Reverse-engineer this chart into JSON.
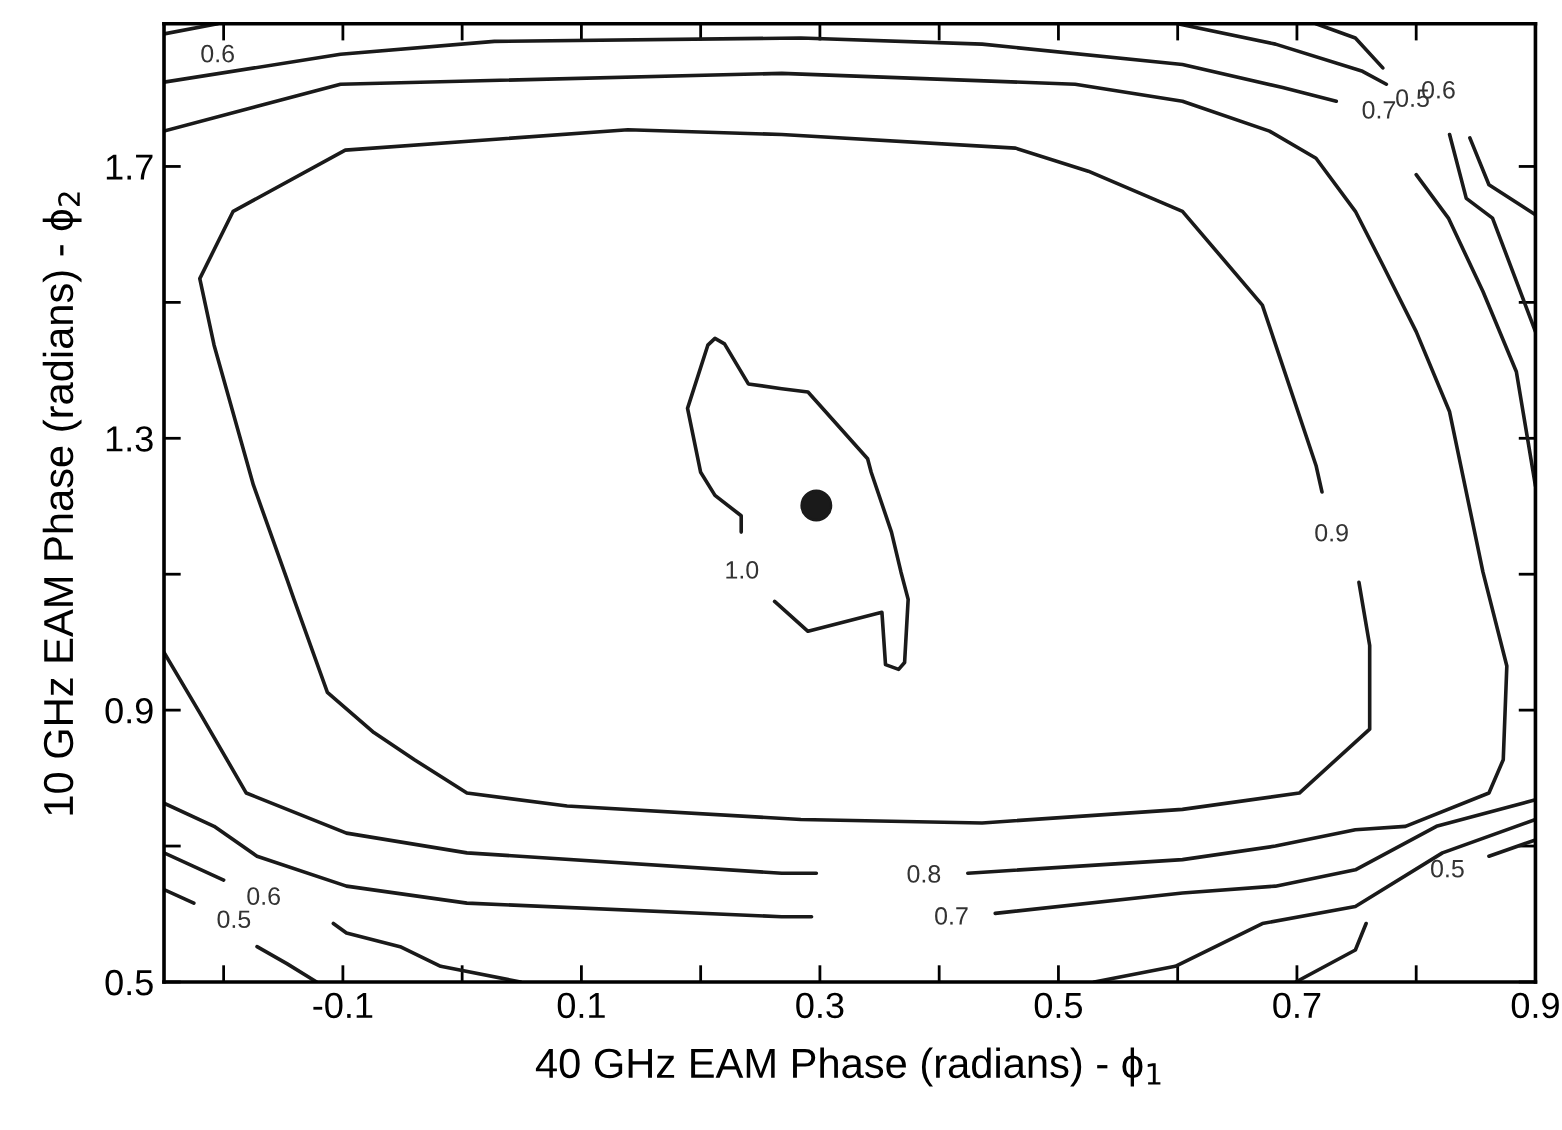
{
  "chart_data": {
    "type": "line",
    "xlabel": "40 GHz EAM Phase (radians) - ϕ$_{1}$",
    "ylabel": "10 GHz EAM Phase (radians) - ϕ$_{2}$",
    "xlim": [
      -0.25,
      0.9
    ],
    "ylim": [
      0.5,
      1.91
    ],
    "xticks": [
      {
        "value": -0.2,
        "label": null
      },
      -0.1,
      {
        "value": 0.0,
        "label": null
      },
      0.1,
      {
        "value": 0.2,
        "label": null
      },
      0.3,
      {
        "value": 0.4,
        "label": null
      },
      0.5,
      {
        "value": 0.6,
        "label": null
      },
      0.7,
      {
        "value": 0.8,
        "label": null
      },
      0.9
    ],
    "yticks": [
      0.5,
      {
        "value": 0.7,
        "label": null
      },
      0.9,
      {
        "value": 1.1,
        "label": null
      },
      1.3,
      {
        "value": 1.5,
        "label": null
      },
      1.7
    ],
    "grid": false,
    "legend": false,
    "marker": "none",
    "line_style": "solid",
    "series": [
      {
        "name": "0.6",
        "color": "#1a1a1a",
        "x": [
          -0.25,
          -0.205
        ],
        "values": [
          1.895,
          1.91
        ]
      },
      {
        "name": "0.7",
        "color": "#1a1a1a",
        "x": [
          -0.25,
          -0.102,
          0.027,
          0.284,
          0.436,
          0.604,
          0.688,
          0.733
        ],
        "values": [
          1.824,
          1.865,
          1.884,
          1.889,
          1.88,
          1.85,
          1.816,
          1.796
        ]
      },
      {
        "color": "#1a1a1a",
        "x": [
          0.8,
          0.827,
          0.856,
          0.884,
          0.9
        ],
        "values": [
          1.688,
          1.624,
          1.516,
          1.398,
          1.23
        ]
      },
      {
        "name": "0.7",
        "color": "#1a1a1a",
        "x": [
          0.9,
          0.817,
          0.749,
          0.682,
          0.604,
          0.447
        ],
        "values": [
          0.768,
          0.729,
          0.665,
          0.641,
          0.631,
          0.601
        ]
      },
      {
        "color": "#1a1a1a",
        "x": [
          0.293,
          0.268,
          0.004,
          -0.097,
          -0.172,
          -0.208,
          -0.25
        ],
        "values": [
          0.596,
          0.596,
          0.616,
          0.641,
          0.685,
          0.729,
          0.763
        ]
      },
      {
        "name": "0.8",
        "color": "#1a1a1a",
        "x": [
          -0.25,
          -0.102,
          0.268,
          0.514,
          0.604,
          0.677,
          0.716,
          0.749,
          0.772,
          0.8,
          0.828,
          0.856,
          0.876,
          0.873,
          0.861,
          0.791,
          0.749,
          0.682,
          0.604,
          0.424
        ],
        "values": [
          1.752,
          1.821,
          1.837,
          1.821,
          1.796,
          1.752,
          1.712,
          1.634,
          1.555,
          1.457,
          1.339,
          1.103,
          0.965,
          0.827,
          0.778,
          0.729,
          0.724,
          0.7,
          0.68,
          0.66
        ]
      },
      {
        "color": "#1a1a1a",
        "x": [
          0.297,
          0.268,
          0.004,
          -0.097,
          -0.181,
          -0.22,
          -0.25
        ],
        "values": [
          0.66,
          0.66,
          0.69,
          0.719,
          0.778,
          0.896,
          0.985
        ]
      },
      {
        "name": "0.9",
        "color": "#1a1a1a",
        "x": [
          0.752,
          0.761,
          0.761,
          0.702,
          0.604,
          0.436,
          0.284,
          0.088,
          0.004,
          -0.04,
          -0.074,
          -0.113,
          -0.141,
          -0.147,
          -0.175,
          -0.208,
          -0.22,
          -0.192,
          -0.098,
          0.139,
          0.268,
          0.464,
          0.525,
          0.604,
          0.671,
          0.716,
          0.721
        ],
        "values": [
          1.088,
          0.995,
          0.872,
          0.778,
          0.754,
          0.734,
          0.739,
          0.759,
          0.778,
          0.827,
          0.867,
          0.926,
          1.063,
          1.093,
          1.231,
          1.437,
          1.535,
          1.634,
          1.724,
          1.754,
          1.747,
          1.727,
          1.693,
          1.634,
          1.496,
          1.26,
          1.221
        ]
      },
      {
        "name": "1.0",
        "color": "#1a1a1a",
        "x": [
          0.234,
          0.234,
          0.212,
          0.2,
          0.189,
          0.206,
          0.212,
          0.22,
          0.24,
          0.268,
          0.29,
          0.34,
          0.343,
          0.36,
          0.368,
          0.374,
          0.371,
          0.366,
          0.355,
          0.352,
          0.29,
          0.262
        ],
        "values": [
          1.162,
          1.186,
          1.216,
          1.25,
          1.344,
          1.437,
          1.447,
          1.439,
          1.38,
          1.373,
          1.368,
          1.27,
          1.25,
          1.162,
          1.103,
          1.063,
          0.97,
          0.96,
          0.967,
          1.044,
          1.016,
          1.06
        ]
      },
      {
        "color": "#1a1a1a",
        "x": [
          0.6,
          0.682,
          0.755,
          0.775
        ],
        "values": [
          1.91,
          1.88,
          1.84,
          1.821
        ]
      },
      {
        "name": "0.6",
        "color": "#1a1a1a",
        "x": [
          0.9,
          0.864,
          0.842,
          0.828
        ],
        "values": [
          1.457,
          1.624,
          1.653,
          1.747
        ]
      },
      {
        "name": "0.5",
        "color": "#1a1a1a",
        "x": [
          0.716,
          0.749,
          0.772
        ],
        "values": [
          1.91,
          1.889,
          1.845
        ]
      },
      {
        "color": "#1a1a1a",
        "x": [
          0.845,
          0.861,
          0.9
        ],
        "values": [
          1.742,
          1.673,
          1.629
        ]
      },
      {
        "color": "#1a1a1a",
        "x": [
          0.9,
          0.822,
          0.749,
          0.671,
          0.598,
          0.53
        ],
        "values": [
          0.739,
          0.69,
          0.611,
          0.586,
          0.523,
          0.5
        ]
      },
      {
        "color": "#1a1a1a",
        "x": [
          0.049,
          -0.018,
          -0.052,
          -0.097,
          -0.108
        ],
        "values": [
          0.5,
          0.523,
          0.552,
          0.572,
          0.586
        ]
      },
      {
        "name": "0.6",
        "color": "#1a1a1a",
        "x": [
          -0.25,
          -0.2
        ],
        "values": [
          0.69,
          0.65
        ]
      },
      {
        "name": "0.5",
        "color": "#1a1a1a",
        "x": [
          -0.25,
          -0.225
        ],
        "values": [
          0.636,
          0.616
        ]
      },
      {
        "color": "#1a1a1a",
        "x": [
          -0.172,
          -0.147,
          -0.122
        ],
        "values": [
          0.552,
          0.527,
          0.5
        ]
      },
      {
        "name": "0.5",
        "color": "#1a1a1a",
        "x": [
          0.9,
          0.861
        ],
        "values": [
          0.709,
          0.685
        ]
      },
      {
        "color": "#1a1a1a",
        "x": [
          0.758,
          0.749,
          0.699
        ],
        "values": [
          0.586,
          0.547,
          0.5
        ]
      },
      {
        "type": "scatter",
        "marker": "circle",
        "color": "#1a1a1a",
        "x": [
          0.297
        ],
        "values": [
          1.201
        ]
      }
    ]
  }
}
